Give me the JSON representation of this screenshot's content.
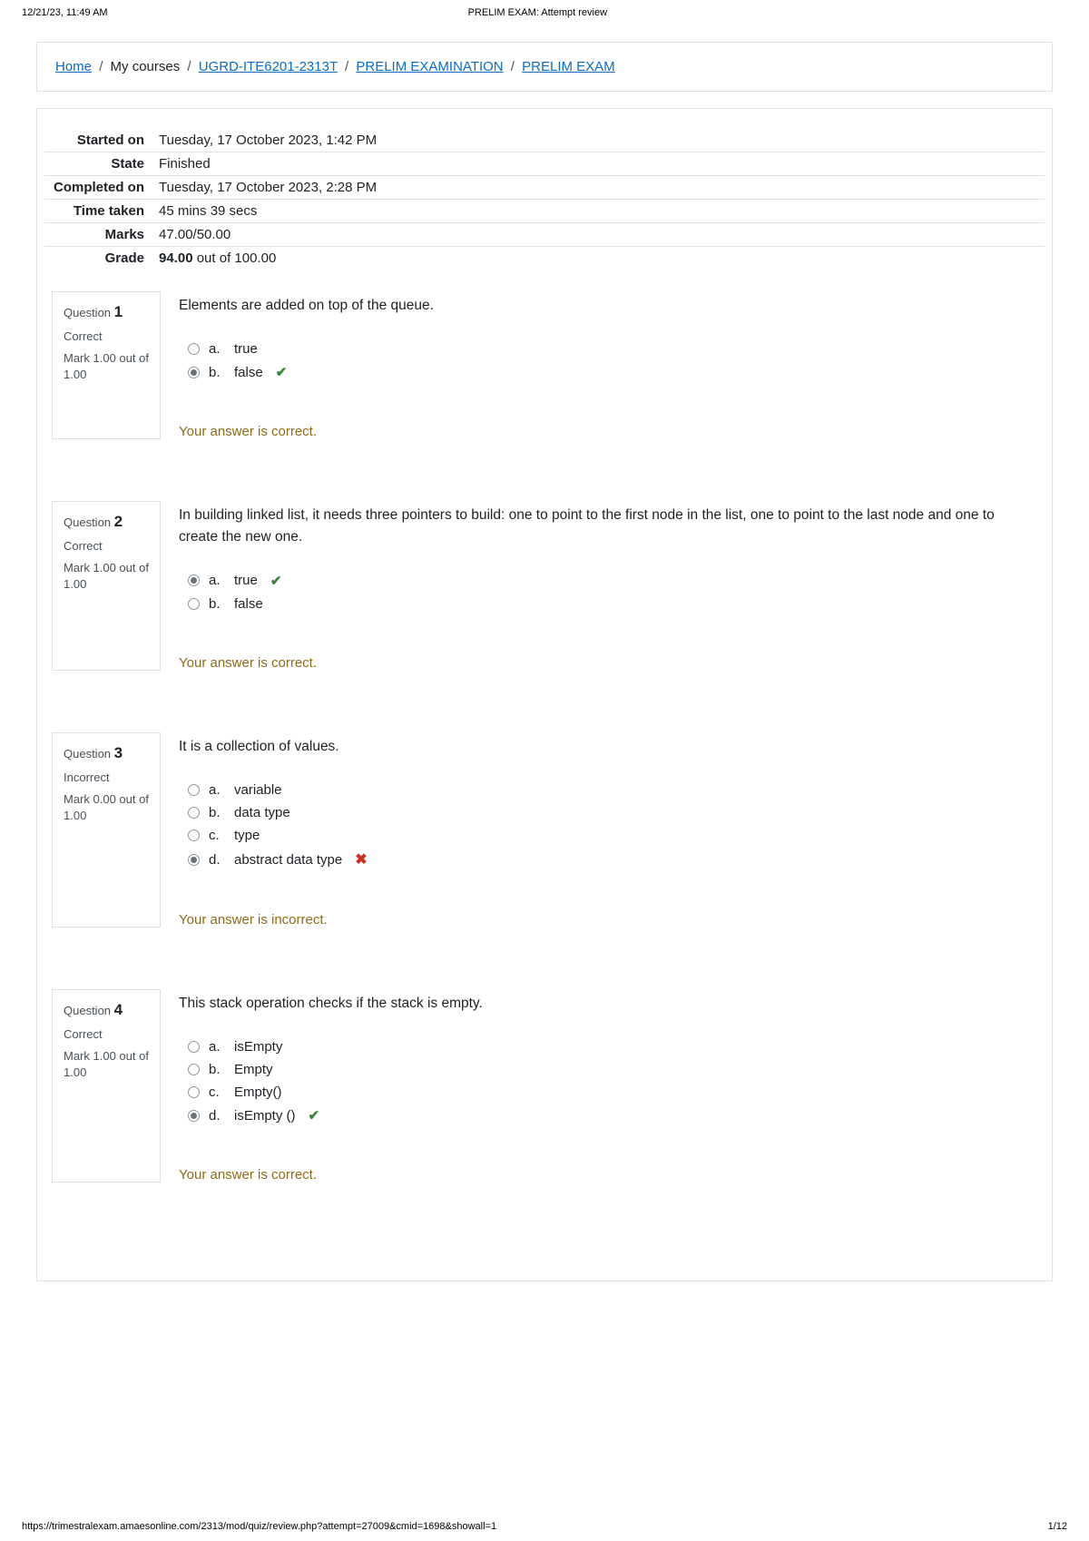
{
  "print": {
    "timestamp": "12/21/23, 11:49 AM",
    "title": "PRELIM EXAM: Attempt review",
    "url": "https://trimestralexam.amaesonline.com/2313/mod/quiz/review.php?attempt=27009&cmid=1698&showall=1",
    "page": "1/12"
  },
  "breadcrumb": {
    "home": "Home",
    "mycourses": "My courses",
    "course": "UGRD-ITE6201-2313T",
    "section": "PRELIM EXAMINATION",
    "activity": "PRELIM EXAM"
  },
  "summary": {
    "labels": {
      "started": "Started on",
      "state": "State",
      "completed": "Completed on",
      "time": "Time taken",
      "marks": "Marks",
      "grade": "Grade"
    },
    "started": "Tuesday, 17 October 2023, 1:42 PM",
    "state": "Finished",
    "completed": "Tuesday, 17 October 2023, 2:28 PM",
    "time": "45 mins 39 secs",
    "marks": "47.00/50.00",
    "grade_bold": "94.00",
    "grade_rest": " out of 100.00"
  },
  "q_label": "Question",
  "questions": [
    {
      "num": "1",
      "state": "Correct",
      "mark": "Mark 1.00 out of 1.00",
      "text": "Elements are added on top of the queue.",
      "answers": [
        {
          "letter": "a.",
          "text": "true",
          "selected": false,
          "correct": false,
          "wrong": false
        },
        {
          "letter": "b.",
          "text": "false",
          "selected": true,
          "correct": true,
          "wrong": false
        }
      ],
      "feedback": "Your answer is correct."
    },
    {
      "num": "2",
      "state": "Correct",
      "mark": "Mark 1.00 out of 1.00",
      "text": "In building linked list, it needs three pointers to build: one to point to the first node in the list, one to point to the last node and one to create the new one.",
      "answers": [
        {
          "letter": "a.",
          "text": "true",
          "selected": true,
          "correct": true,
          "wrong": false
        },
        {
          "letter": "b.",
          "text": "false",
          "selected": false,
          "correct": false,
          "wrong": false
        }
      ],
      "feedback": "Your answer is correct."
    },
    {
      "num": "3",
      "state": "Incorrect",
      "mark": "Mark 0.00 out of 1.00",
      "text": "It is a collection of values.",
      "answers": [
        {
          "letter": "a.",
          "text": "variable",
          "selected": false,
          "correct": false,
          "wrong": false
        },
        {
          "letter": "b.",
          "text": "data type",
          "selected": false,
          "correct": false,
          "wrong": false
        },
        {
          "letter": "c.",
          "text": "type",
          "selected": false,
          "correct": false,
          "wrong": false
        },
        {
          "letter": "d.",
          "text": "abstract data type",
          "selected": true,
          "correct": false,
          "wrong": true
        }
      ],
      "feedback": "Your answer is incorrect."
    },
    {
      "num": "4",
      "state": "Correct",
      "mark": "Mark 1.00 out of 1.00",
      "text": "This stack operation checks if the stack is empty.",
      "answers": [
        {
          "letter": "a.",
          "text": "isEmpty",
          "selected": false,
          "correct": false,
          "wrong": false
        },
        {
          "letter": "b.",
          "text": "Empty",
          "selected": false,
          "correct": false,
          "wrong": false
        },
        {
          "letter": "c.",
          "text": "Empty()",
          "selected": false,
          "correct": false,
          "wrong": false
        },
        {
          "letter": "d.",
          "text": "isEmpty ()",
          "selected": true,
          "correct": true,
          "wrong": false
        }
      ],
      "feedback": "Your answer is correct."
    }
  ]
}
